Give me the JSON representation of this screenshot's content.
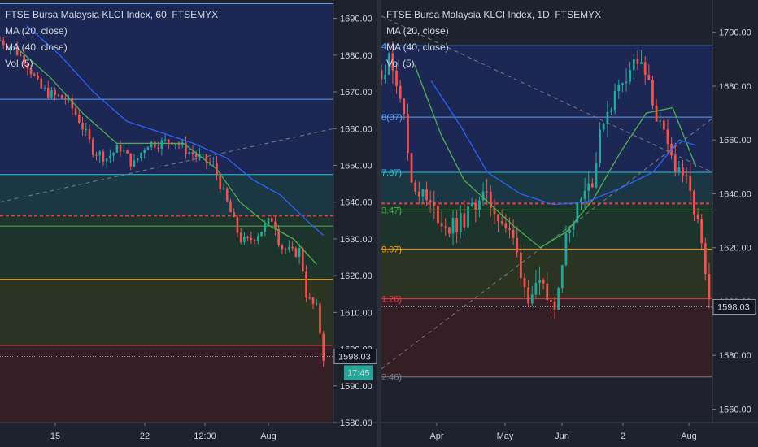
{
  "colors": {
    "background": "#1e222d",
    "up_candle": "#26a69a",
    "down_candle": "#ef5350",
    "ma20": "#4caf50",
    "ma40": "#2962ff",
    "trend": "#787b86",
    "current_price_line": "#9598a1",
    "time_badge": "#26a69a"
  },
  "charts": [
    {
      "id": "left",
      "legend": {
        "title": "FTSE Bursa Malaysia KLCI Index, 60, FTSEMYX",
        "ma20": "MA (20, close)",
        "ma40": "MA (40, close)",
        "vol": "Vol (5)"
      },
      "y_axis": {
        "min": 1580,
        "max": 1695,
        "ticks": [
          "1690.00",
          "1680.00",
          "1670.00",
          "1660.00",
          "1650.00",
          "1640.00",
          "1630.00",
          "1620.00",
          "1610.00",
          "1600.00",
          "1590.00",
          "1580.00"
        ]
      },
      "x_ticks": [
        "15",
        "22",
        "12:00",
        "Aug"
      ],
      "price_badge": "1598.03",
      "time_badge": "17:45"
    },
    {
      "id": "right",
      "legend": {
        "title": "FTSE Bursa Malaysia KLCI Index, 1D, FTSEMYX",
        "ma20": "MA (20, close)",
        "ma40": "MA (40, close)",
        "vol": "Vol (5)"
      },
      "y_axis": {
        "min": 1555,
        "max": 1712,
        "ticks": [
          "1700.00",
          "1680.00",
          "1660.00",
          "1640.00",
          "1620.00",
          "1600.00",
          "1580.00",
          "1560.00"
        ]
      },
      "x_ticks": [
        "Apr",
        "May",
        "Jun",
        "2",
        "Aug"
      ],
      "price_badge": "1598.03",
      "fib_labels": [
        "4(",
        "8(37)",
        "7.87)",
        "3.47)",
        "9.07)",
        "1.26)",
        "2.46)"
      ]
    }
  ],
  "chart_data": [
    {
      "type": "candlestick",
      "title": "FTSE Bursa Malaysia KLCI Index, 60, FTSEMYX",
      "interval": "60",
      "ylim": [
        1580,
        1695
      ],
      "x_tick_labels": [
        "15",
        "22",
        "12:00",
        "Aug"
      ],
      "indicators": [
        "MA (20, close)",
        "MA (40, close)",
        "Vol (5)"
      ],
      "last_price": 1598.03,
      "fib_levels": [
        1694,
        1668,
        1647.5,
        1636.3,
        1633.5,
        1619,
        1601
      ],
      "fib_level_styles": [
        "blue",
        "blue",
        "teal",
        "red-dashed",
        "green",
        "orange",
        "red"
      ],
      "close_path_points": [
        [
          0,
          1684
        ],
        [
          4,
          1682
        ],
        [
          8,
          1678
        ],
        [
          12,
          1671
        ],
        [
          16,
          1669
        ],
        [
          20,
          1668
        ],
        [
          24,
          1662
        ],
        [
          28,
          1654
        ],
        [
          32,
          1652
        ],
        [
          36,
          1655
        ],
        [
          40,
          1650
        ],
        [
          44,
          1656
        ],
        [
          48,
          1656
        ],
        [
          52,
          1657
        ],
        [
          56,
          1654
        ],
        [
          60,
          1652
        ],
        [
          64,
          1650
        ],
        [
          68,
          1640
        ],
        [
          72,
          1630
        ],
        [
          74,
          1629
        ],
        [
          78,
          1632
        ],
        [
          82,
          1636
        ],
        [
          84,
          1628
        ],
        [
          88,
          1626
        ],
        [
          90,
          1627
        ],
        [
          92,
          1614
        ],
        [
          94,
          1612
        ],
        [
          95,
          1611
        ],
        [
          97,
          1598
        ]
      ],
      "ma20_points": [
        [
          5,
          1682
        ],
        [
          15,
          1674
        ],
        [
          25,
          1664
        ],
        [
          35,
          1656
        ],
        [
          45,
          1656
        ],
        [
          55,
          1656
        ],
        [
          65,
          1649
        ],
        [
          72,
          1640
        ],
        [
          80,
          1634
        ],
        [
          88,
          1630
        ],
        [
          95,
          1623
        ]
      ],
      "ma40_points": [
        [
          8,
          1688
        ],
        [
          18,
          1680
        ],
        [
          28,
          1670
        ],
        [
          38,
          1662
        ],
        [
          48,
          1659
        ],
        [
          58,
          1656
        ],
        [
          68,
          1652
        ],
        [
          76,
          1646
        ],
        [
          84,
          1642
        ],
        [
          92,
          1635
        ],
        [
          97,
          1631
        ]
      ],
      "trend_line": [
        [
          0,
          1640
        ],
        [
          100,
          1660
        ]
      ]
    },
    {
      "type": "candlestick",
      "title": "FTSE Bursa Malaysia KLCI Index, 1D, FTSEMYX",
      "interval": "1D",
      "ylim": [
        1555,
        1712
      ],
      "x_tick_labels": [
        "Apr",
        "May",
        "Jun",
        "2",
        "Aug"
      ],
      "indicators": [
        "MA (20, close)",
        "MA (40, close)",
        "Vol (5)"
      ],
      "last_price": 1598.03,
      "fib_levels": [
        1695,
        1668.5,
        1648,
        1636.4,
        1634,
        1619.5,
        1601,
        1572
      ],
      "fib_level_styles": [
        "blue",
        "blue",
        "teal",
        "red-dashed",
        "green",
        "orange",
        "red",
        "grey"
      ],
      "close_path_points": [
        [
          0,
          1686
        ],
        [
          3,
          1690
        ],
        [
          6,
          1676
        ],
        [
          9,
          1645
        ],
        [
          12,
          1640
        ],
        [
          15,
          1635
        ],
        [
          20,
          1627
        ],
        [
          25,
          1630
        ],
        [
          30,
          1640
        ],
        [
          35,
          1633
        ],
        [
          40,
          1622
        ],
        [
          44,
          1602
        ],
        [
          48,
          1605
        ],
        [
          52,
          1598
        ],
        [
          56,
          1625
        ],
        [
          60,
          1640
        ],
        [
          64,
          1646
        ],
        [
          67,
          1668
        ],
        [
          70,
          1675
        ],
        [
          73,
          1683
        ],
        [
          77,
          1690
        ],
        [
          80,
          1683
        ],
        [
          84,
          1665
        ],
        [
          88,
          1652
        ],
        [
          91,
          1648
        ],
        [
          94,
          1636
        ],
        [
          96,
          1626
        ],
        [
          99,
          1598
        ]
      ],
      "ma20_points": [
        [
          10,
          1688
        ],
        [
          18,
          1662
        ],
        [
          25,
          1645
        ],
        [
          33,
          1636
        ],
        [
          40,
          1628
        ],
        [
          48,
          1620
        ],
        [
          56,
          1626
        ],
        [
          64,
          1638
        ],
        [
          72,
          1655
        ],
        [
          80,
          1670
        ],
        [
          88,
          1672
        ],
        [
          95,
          1650
        ]
      ],
      "ma40_points": [
        [
          15,
          1682
        ],
        [
          24,
          1665
        ],
        [
          32,
          1648
        ],
        [
          42,
          1640
        ],
        [
          52,
          1636
        ],
        [
          62,
          1637
        ],
        [
          72,
          1642
        ],
        [
          82,
          1648
        ],
        [
          90,
          1660
        ],
        [
          95,
          1658
        ]
      ],
      "trend_lines": [
        [
          [
            0,
            1706
          ],
          [
            100,
            1648
          ]
        ],
        [
          [
            0,
            1575
          ],
          [
            100,
            1668
          ]
        ]
      ]
    }
  ]
}
